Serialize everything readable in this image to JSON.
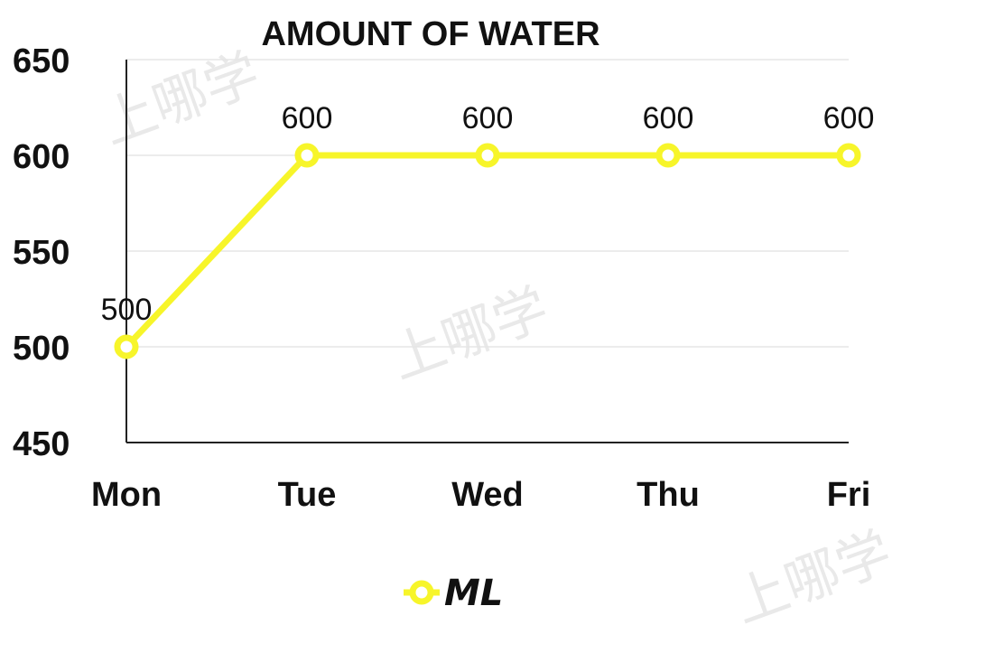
{
  "watermark": "上哪学",
  "chart_data": {
    "type": "line",
    "title": "AMOUNT OF WATER",
    "categories": [
      "Mon",
      "Tue",
      "Wed",
      "Thu",
      "Fri"
    ],
    "series": [
      {
        "name": "ML",
        "values": [
          500,
          600,
          600,
          600,
          600
        ],
        "color": "#f7f52a"
      }
    ],
    "yticks": [
      450,
      500,
      550,
      600,
      650
    ],
    "ylim": [
      450,
      650
    ],
    "grid": true,
    "legend": "bottom",
    "data_labels": true
  }
}
